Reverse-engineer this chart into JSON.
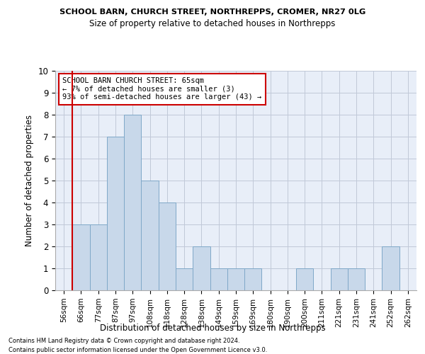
{
  "title": "SCHOOL BARN, CHURCH STREET, NORTHREPPS, CROMER, NR27 0LG",
  "subtitle": "Size of property relative to detached houses in Northrepps",
  "xlabel": "Distribution of detached houses by size in Northrepps",
  "ylabel": "Number of detached properties",
  "categories": [
    "56sqm",
    "66sqm",
    "77sqm",
    "87sqm",
    "97sqm",
    "108sqm",
    "118sqm",
    "128sqm",
    "138sqm",
    "149sqm",
    "159sqm",
    "169sqm",
    "180sqm",
    "190sqm",
    "200sqm",
    "211sqm",
    "221sqm",
    "231sqm",
    "241sqm",
    "252sqm",
    "262sqm"
  ],
  "values": [
    0,
    3,
    3,
    7,
    8,
    5,
    4,
    1,
    2,
    1,
    1,
    1,
    0,
    0,
    1,
    0,
    1,
    1,
    0,
    2,
    0
  ],
  "bar_color": "#c8d8ea",
  "bar_edge_color": "#7fa8c8",
  "subject_line_color": "#cc0000",
  "ylim": [
    0,
    10
  ],
  "yticks": [
    0,
    1,
    2,
    3,
    4,
    5,
    6,
    7,
    8,
    9,
    10
  ],
  "annotation_line1": "SCHOOL BARN CHURCH STREET: 65sqm",
  "annotation_line2": "← 7% of detached houses are smaller (3)",
  "annotation_line3": "93% of semi-detached houses are larger (43) →",
  "annotation_box_color": "#cc0000",
  "background_color": "#e8eef8",
  "grid_color": "#c0c8d8",
  "footer_line1": "Contains HM Land Registry data © Crown copyright and database right 2024.",
  "footer_line2": "Contains public sector information licensed under the Open Government Licence v3.0."
}
